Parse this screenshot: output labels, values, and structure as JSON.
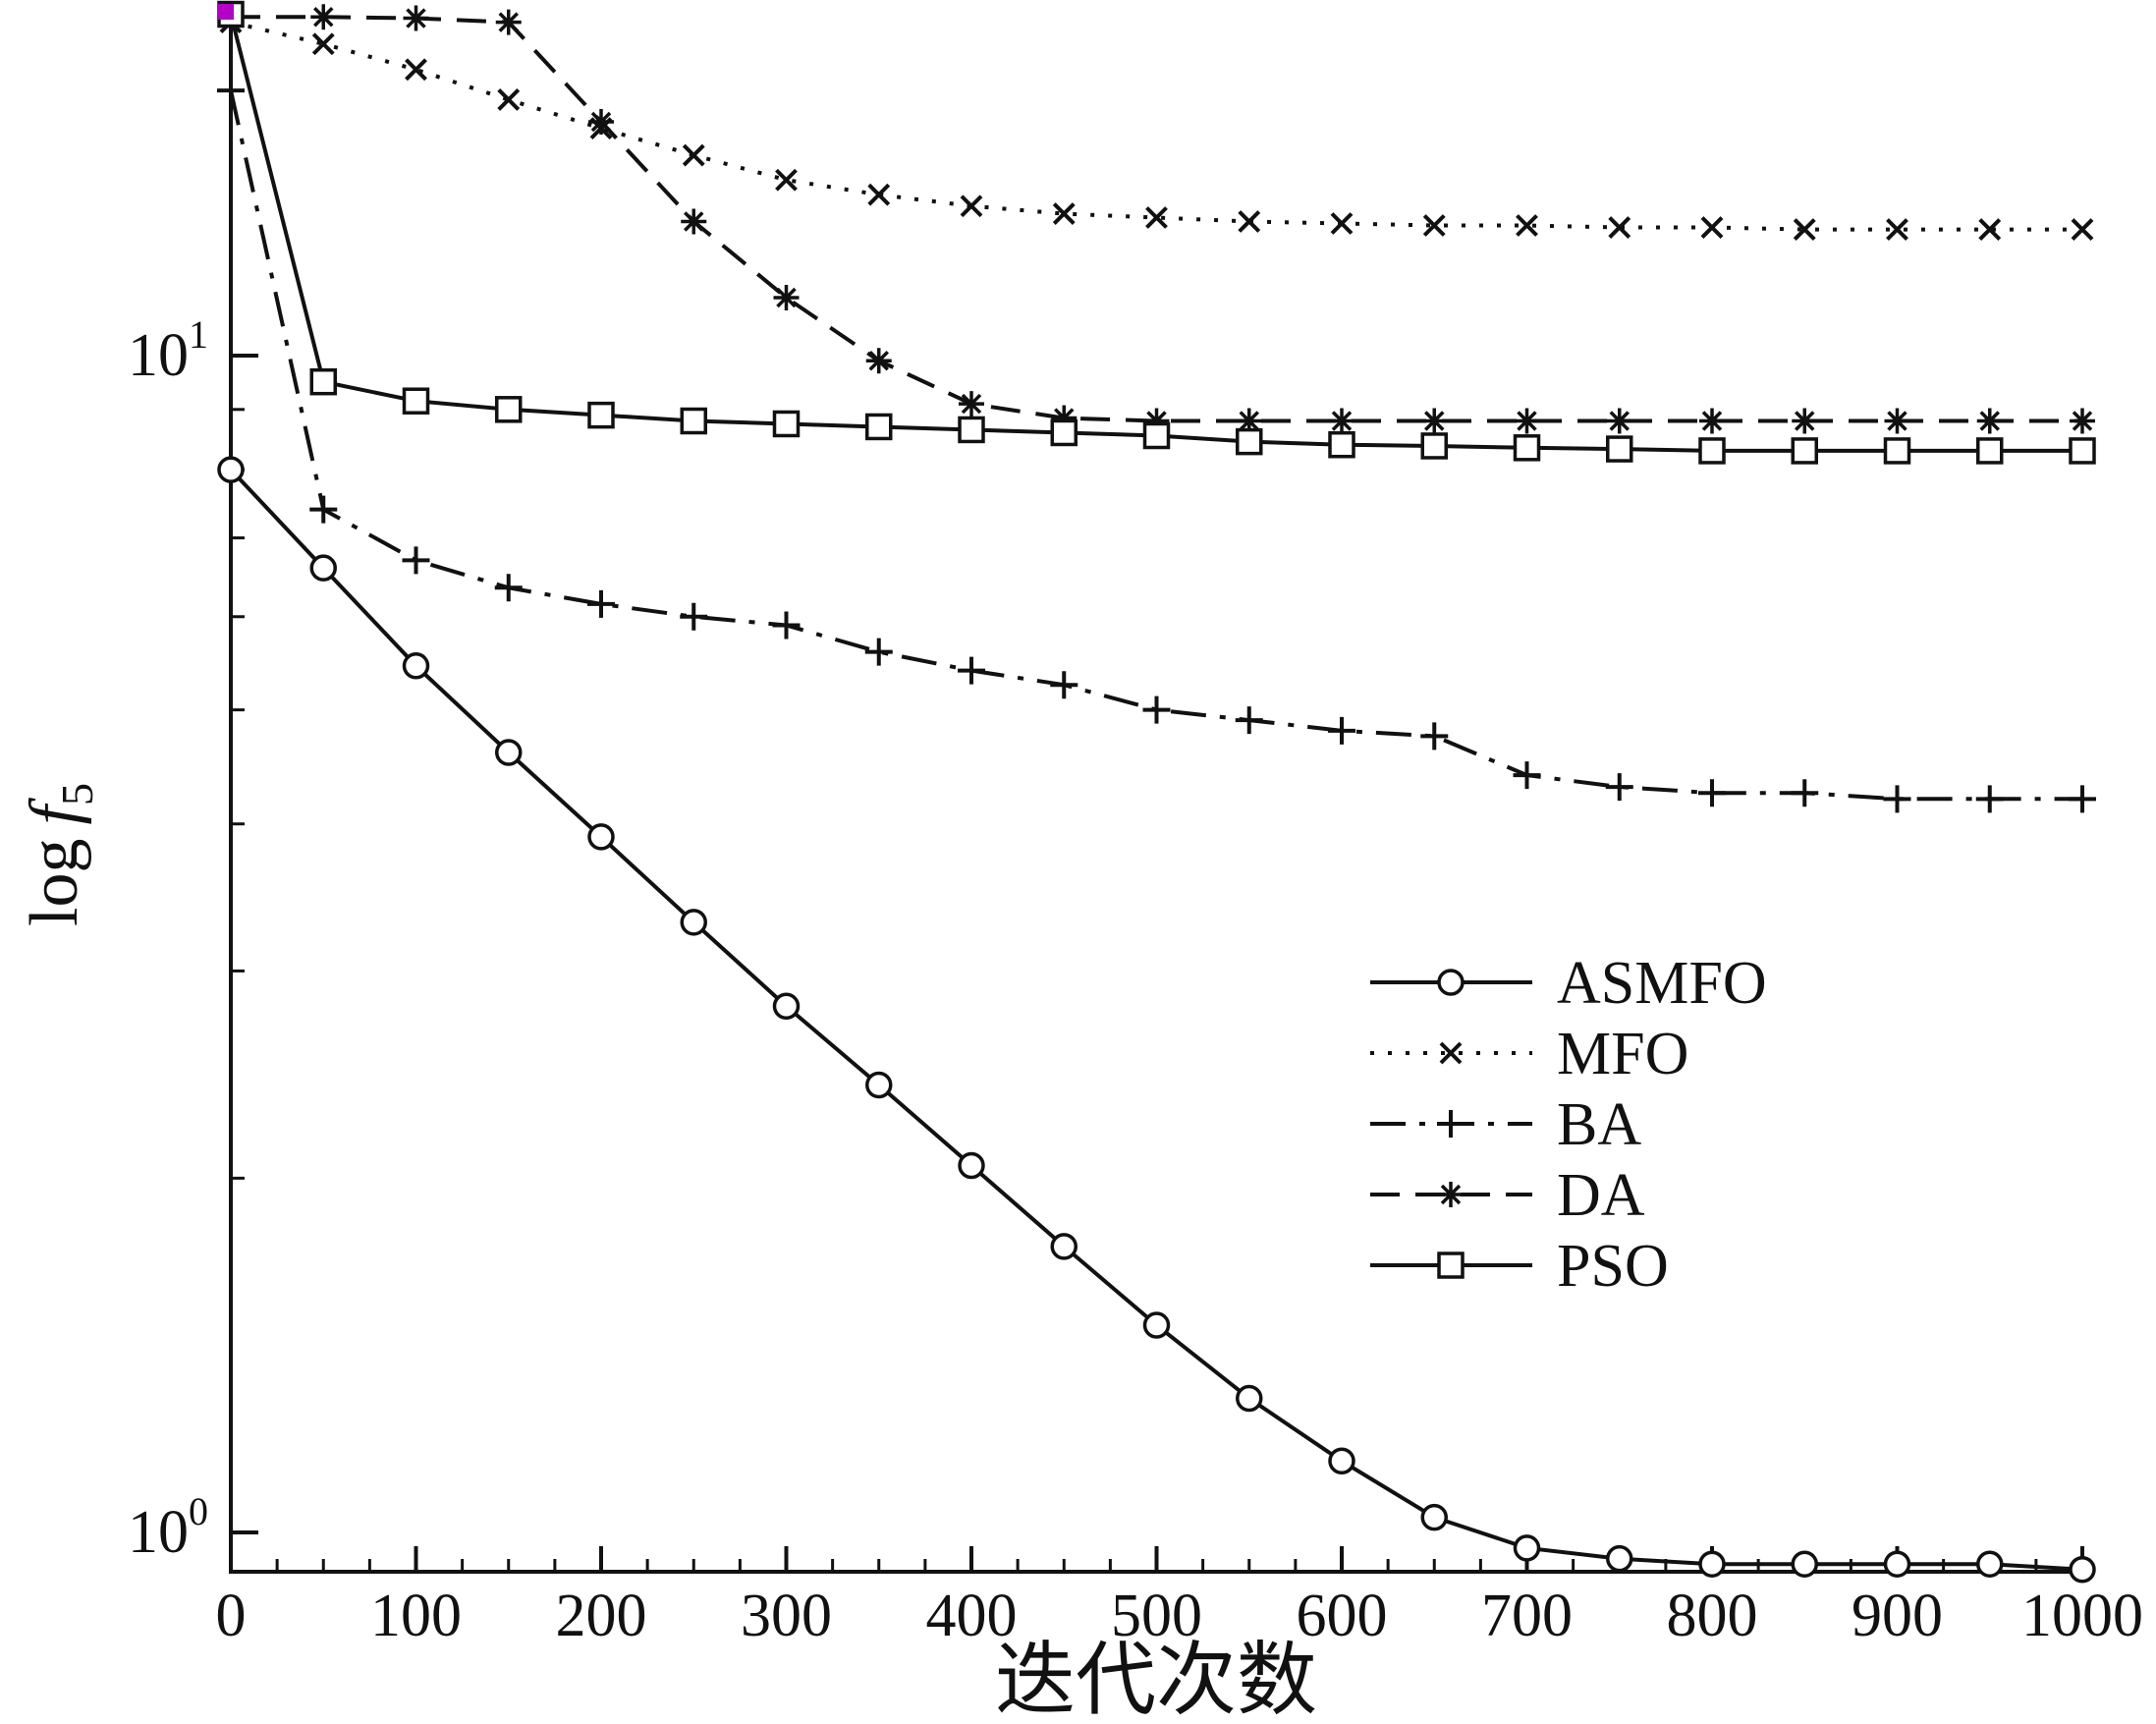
{
  "figure": {
    "background": "#ffffff",
    "ink": "#111111",
    "artifact_color": "#b400c8",
    "xlabel": "迭代次数",
    "ylabel": {
      "log": "log",
      "f": "f",
      "sub": "5"
    },
    "x_tick_labels": [
      "0",
      "100",
      "200",
      "300",
      "400",
      "500",
      "600",
      "700",
      "800",
      "900",
      "1000"
    ],
    "x_tick_values": [
      0,
      100,
      200,
      300,
      400,
      500,
      600,
      700,
      800,
      900,
      1000
    ],
    "x_minor_step": 25,
    "y_major_ticks": [
      {
        "value": 1,
        "base": "10",
        "exp": "0"
      },
      {
        "value": 10,
        "base": "10",
        "exp": "1"
      }
    ],
    "y_minor_ticks": [
      2,
      3,
      4,
      5,
      6,
      7,
      8,
      9
    ]
  },
  "chart_data": {
    "type": "line",
    "title": "",
    "xlabel": "迭代次数",
    "ylabel": "log f5",
    "y_scale": "log10",
    "x_range": [
      0,
      1000
    ],
    "ylim": [
      0.93,
      19.7
    ],
    "grid": false,
    "legend_position": "center-right",
    "x": [
      0,
      50,
      100,
      150,
      200,
      250,
      300,
      350,
      400,
      450,
      500,
      550,
      600,
      650,
      700,
      750,
      800,
      850,
      900,
      950,
      1000
    ],
    "series": [
      {
        "name": "ASMFO",
        "line_style": "solid",
        "marker": "circle",
        "values": [
          8.0,
          6.6,
          5.45,
          4.6,
          3.9,
          3.3,
          2.8,
          2.4,
          2.05,
          1.75,
          1.5,
          1.3,
          1.15,
          1.03,
          0.97,
          0.95,
          0.94,
          0.94,
          0.94,
          0.94,
          0.93
        ]
      },
      {
        "name": "MFO",
        "line_style": "dotted",
        "marker": "x",
        "values": [
          19.2,
          18.4,
          17.5,
          16.5,
          15.6,
          14.8,
          14.1,
          13.7,
          13.4,
          13.2,
          13.1,
          13.0,
          12.95,
          12.9,
          12.9,
          12.85,
          12.85,
          12.8,
          12.8,
          12.8,
          12.8
        ]
      },
      {
        "name": "BA",
        "line_style": "dashdot",
        "marker": "plus",
        "values": [
          16.8,
          7.4,
          6.7,
          6.35,
          6.15,
          6.0,
          5.9,
          5.6,
          5.4,
          5.25,
          5.0,
          4.9,
          4.8,
          4.75,
          4.4,
          4.3,
          4.25,
          4.25,
          4.2,
          4.2,
          4.2
        ]
      },
      {
        "name": "DA",
        "line_style": "dashed",
        "marker": "asterisk",
        "values": [
          19.4,
          19.4,
          19.35,
          19.2,
          15.8,
          13.0,
          11.2,
          9.9,
          9.1,
          8.85,
          8.8,
          8.8,
          8.8,
          8.8,
          8.8,
          8.8,
          8.8,
          8.8,
          8.8,
          8.8,
          8.8
        ]
      },
      {
        "name": "PSO",
        "line_style": "solid",
        "marker": "square",
        "values": [
          19.5,
          9.5,
          9.15,
          9.0,
          8.9,
          8.8,
          8.75,
          8.7,
          8.65,
          8.6,
          8.55,
          8.45,
          8.4,
          8.38,
          8.35,
          8.33,
          8.3,
          8.3,
          8.3,
          8.3,
          8.3
        ]
      }
    ]
  }
}
